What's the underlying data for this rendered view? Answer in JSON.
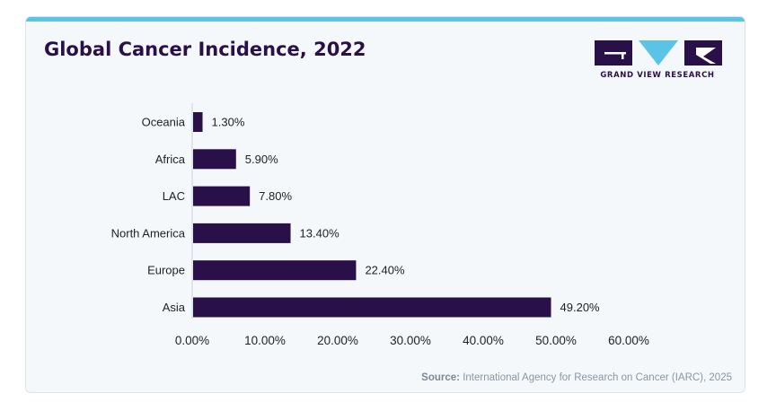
{
  "chart_data": {
    "type": "bar",
    "orientation": "horizontal",
    "title": "Global Cancer Incidence, 2022",
    "categories": [
      "Oceania",
      "Africa",
      "LAC",
      "North America",
      "Europe",
      "Asia"
    ],
    "values": [
      1.3,
      5.9,
      7.8,
      13.4,
      22.4,
      49.2
    ],
    "value_labels": [
      "1.30%",
      "5.90%",
      "7.80%",
      "13.40%",
      "22.40%",
      "49.20%"
    ],
    "xlim": [
      0,
      60
    ],
    "xticks": [
      0,
      10,
      20,
      30,
      40,
      50,
      60
    ],
    "xtick_labels": [
      "0.00%",
      "10.00%",
      "20.00%",
      "30.00%",
      "40.00%",
      "50.00%",
      "60.00%"
    ],
    "grid": false,
    "bar_color": "#2a1048"
  },
  "logo": {
    "text": "GRAND VIEW RESEARCH",
    "color": "#2a1048",
    "accent": "#5bc3e6"
  },
  "source": {
    "label": "Source:",
    "text": "International Agency for Research on Cancer (IARC), 2025"
  }
}
